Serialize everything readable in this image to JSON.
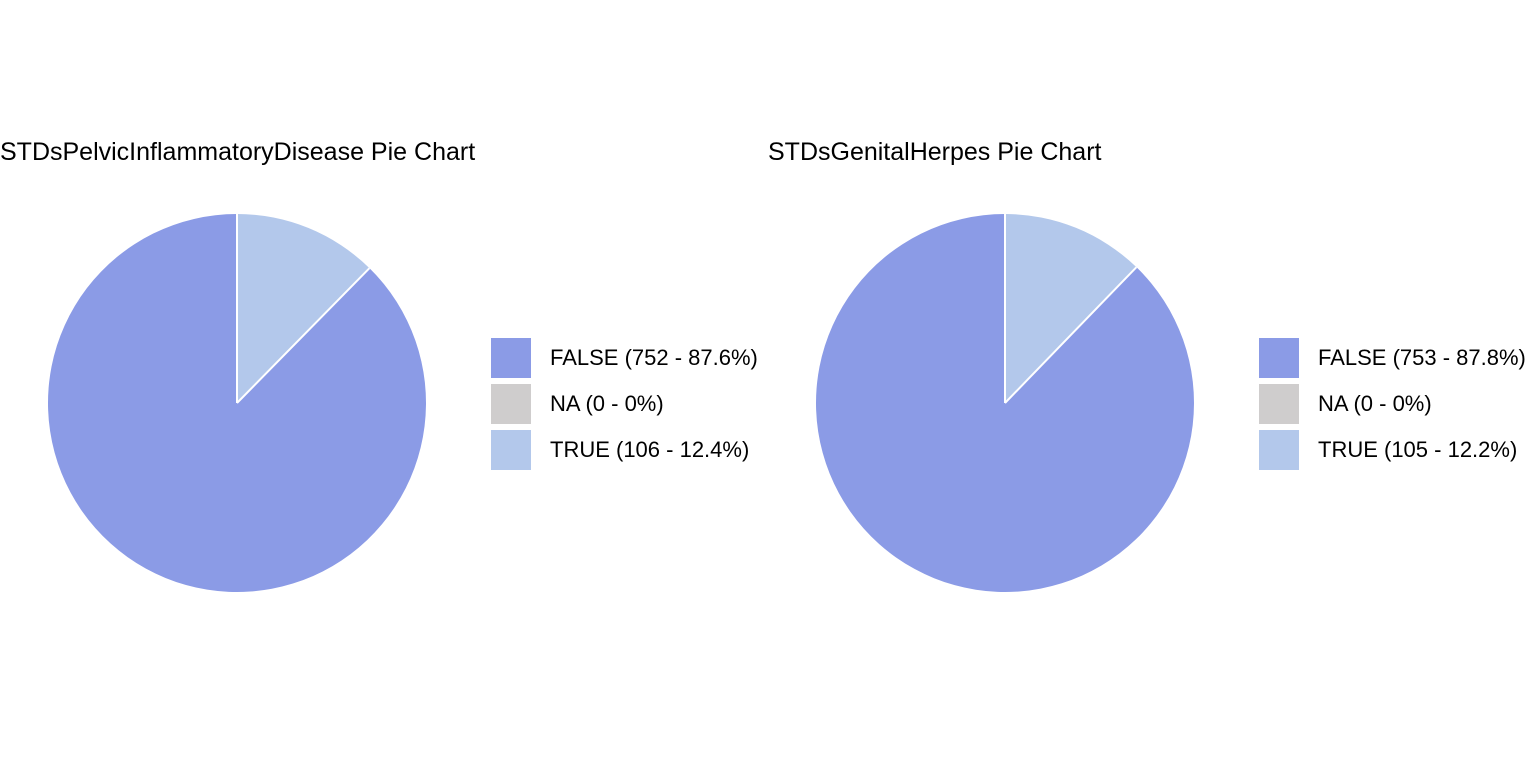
{
  "chart_data": [
    {
      "type": "pie",
      "title": "STDsPelvicInflammatoryDisease Pie Chart",
      "categories": [
        "FALSE",
        "NA",
        "TRUE"
      ],
      "values": [
        752,
        0,
        106
      ],
      "percentages": [
        87.6,
        0,
        12.4
      ],
      "colors": [
        "#8b9be6",
        "#cfcdcd",
        "#b3c8eb"
      ],
      "legend_labels": [
        "FALSE (752 - 87.6%)",
        "NA (0 - 0%)",
        "TRUE (106 - 12.4%)"
      ],
      "legend_position": "right",
      "start_angle": "top",
      "direction": "counterclockwise"
    },
    {
      "type": "pie",
      "title": "STDsGenitalHerpes Pie Chart",
      "categories": [
        "FALSE",
        "NA",
        "TRUE"
      ],
      "values": [
        753,
        0,
        105
      ],
      "percentages": [
        87.8,
        0,
        12.2
      ],
      "colors": [
        "#8b9be6",
        "#cfcdcd",
        "#b3c8eb"
      ],
      "legend_labels": [
        "FALSE (753 - 87.8%)",
        "NA (0 - 0%)",
        "TRUE (105 - 12.2%)"
      ],
      "legend_position": "right",
      "start_angle": "top",
      "direction": "counterclockwise"
    }
  ]
}
